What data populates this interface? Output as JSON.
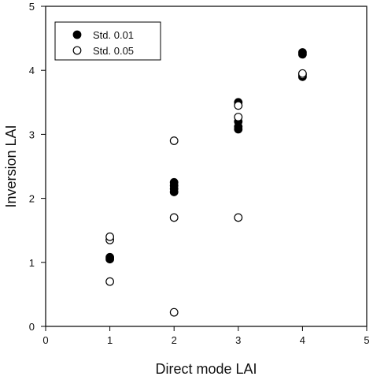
{
  "chart_data": {
    "type": "scatter",
    "title": "",
    "xlabel": "Direct mode LAI",
    "ylabel": "Inversion LAI",
    "xlim": [
      0,
      5
    ],
    "ylim": [
      0,
      5
    ],
    "xticks": [
      "0",
      "1",
      "2",
      "3",
      "4",
      "5"
    ],
    "yticks": [
      "0",
      "1",
      "2",
      "3",
      "4",
      "5"
    ],
    "grid": false,
    "legend_position": "top-left",
    "series": [
      {
        "name": "Std. 0.01",
        "marker": "filled-circle",
        "color": "#000000",
        "points": [
          {
            "x": 1,
            "y": 1.05
          },
          {
            "x": 1,
            "y": 1.08
          },
          {
            "x": 2,
            "y": 2.1
          },
          {
            "x": 2,
            "y": 2.15
          },
          {
            "x": 2,
            "y": 2.2
          },
          {
            "x": 2,
            "y": 2.25
          },
          {
            "x": 3,
            "y": 3.08
          },
          {
            "x": 3,
            "y": 3.12
          },
          {
            "x": 3,
            "y": 3.2
          },
          {
            "x": 3,
            "y": 3.5
          },
          {
            "x": 4,
            "y": 3.9
          },
          {
            "x": 4,
            "y": 4.25
          },
          {
            "x": 4,
            "y": 4.28
          }
        ]
      },
      {
        "name": "Std. 0.05",
        "marker": "open-circle",
        "color": "#000000",
        "points": [
          {
            "x": 1,
            "y": 0.7
          },
          {
            "x": 1,
            "y": 1.35
          },
          {
            "x": 1,
            "y": 1.4
          },
          {
            "x": 2,
            "y": 0.22
          },
          {
            "x": 2,
            "y": 1.7
          },
          {
            "x": 2,
            "y": 2.9
          },
          {
            "x": 3,
            "y": 1.7
          },
          {
            "x": 3,
            "y": 3.27
          },
          {
            "x": 3,
            "y": 3.45
          },
          {
            "x": 4,
            "y": 3.93
          },
          {
            "x": 4,
            "y": 3.95
          }
        ]
      }
    ]
  }
}
